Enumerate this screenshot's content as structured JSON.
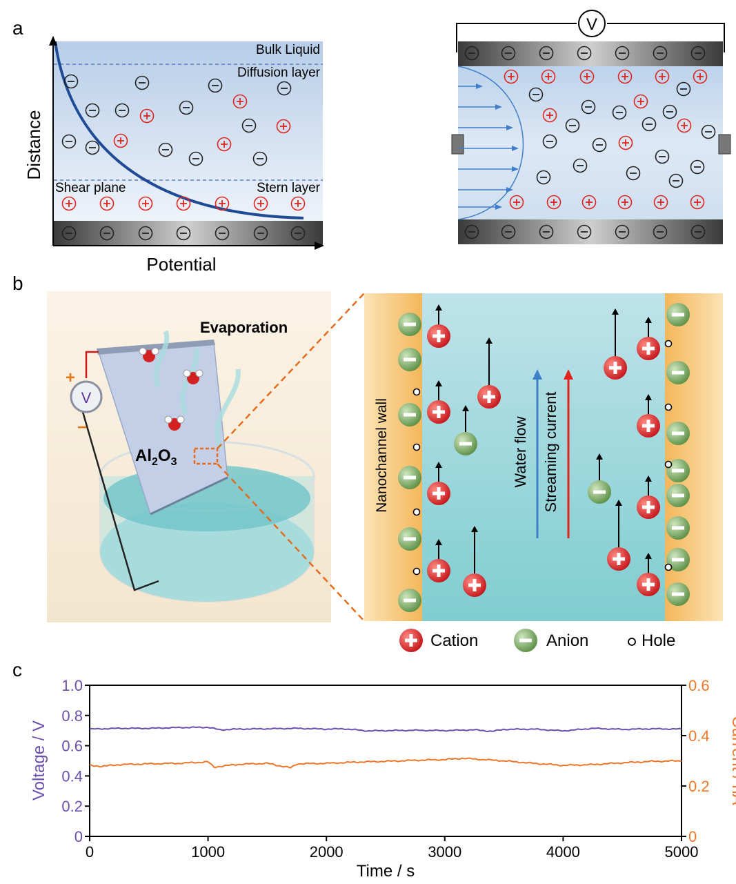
{
  "panels": {
    "a": "a",
    "b": "b",
    "c": "c"
  },
  "panel_a": {
    "bulk_liquid": "Bulk Liquid",
    "diffusion_layer": "Diffusion layer",
    "shear_plane": "Shear plane",
    "stern_layer": "Stern layer",
    "y_axis": "Distance",
    "x_axis": "Potential",
    "voltmeter": "V"
  },
  "panel_b": {
    "evaporation": "Evaporation",
    "material": "Al",
    "material_sub": "2",
    "material_o": "O",
    "material_sub2": "3",
    "plus": "+",
    "minus": "−",
    "voltmeter": "V",
    "wall_label": "Nanochannel wall",
    "water_flow": "Water flow",
    "streaming_current": "Streaming current",
    "legend": {
      "cation": "Cation",
      "anion": "Anion",
      "hole": "Hole"
    }
  },
  "colors": {
    "cation": "#e0241c",
    "anion": "#6fa65a",
    "voltage_line": "#6a4fb0",
    "current_line": "#f0762a",
    "wall": "#f7c97a",
    "channel": "#a9dbe0"
  },
  "chart_data": {
    "type": "line",
    "xlabel": "Time / s",
    "ylabel_left": "Voltage / V",
    "ylabel_right": "Current / nA",
    "xlim": [
      0,
      5000
    ],
    "ylim_left": [
      0,
      1.0
    ],
    "ylim_right": [
      0,
      0.6
    ],
    "x_ticks": [
      "0",
      "1000",
      "2000",
      "3000",
      "4000",
      "5000"
    ],
    "y_ticks_left": [
      "0",
      "0.2",
      "0.4",
      "0.6",
      "0.8",
      "1.0"
    ],
    "y_ticks_right": [
      "0",
      "0.2",
      "0.4",
      "0.6"
    ],
    "series": [
      {
        "axis": "left",
        "x": [
          0,
          250,
          500,
          750,
          1000,
          1100,
          1250,
          1500,
          1750,
          2000,
          2150,
          2350,
          2500,
          2750,
          3000,
          3250,
          3400,
          3500,
          3750,
          4000,
          4250,
          4500,
          4750,
          5000
        ],
        "values": [
          0.71,
          0.715,
          0.715,
          0.72,
          0.722,
          0.705,
          0.71,
          0.712,
          0.715,
          0.71,
          0.712,
          0.698,
          0.7,
          0.702,
          0.7,
          0.705,
          0.695,
          0.708,
          0.71,
          0.698,
          0.715,
          0.708,
          0.712,
          0.71
        ]
      },
      {
        "axis": "right",
        "x": [
          0,
          100,
          250,
          500,
          750,
          1000,
          1050,
          1250,
          1500,
          1700,
          1750,
          2000,
          2250,
          2500,
          2750,
          3000,
          3150,
          3500,
          3750,
          4000,
          4250,
          4500,
          4750,
          5000
        ],
        "values": [
          0.282,
          0.278,
          0.285,
          0.288,
          0.29,
          0.296,
          0.275,
          0.286,
          0.29,
          0.272,
          0.288,
          0.29,
          0.295,
          0.298,
          0.302,
          0.305,
          0.31,
          0.3,
          0.29,
          0.282,
          0.285,
          0.292,
          0.298,
          0.3
        ]
      }
    ]
  }
}
